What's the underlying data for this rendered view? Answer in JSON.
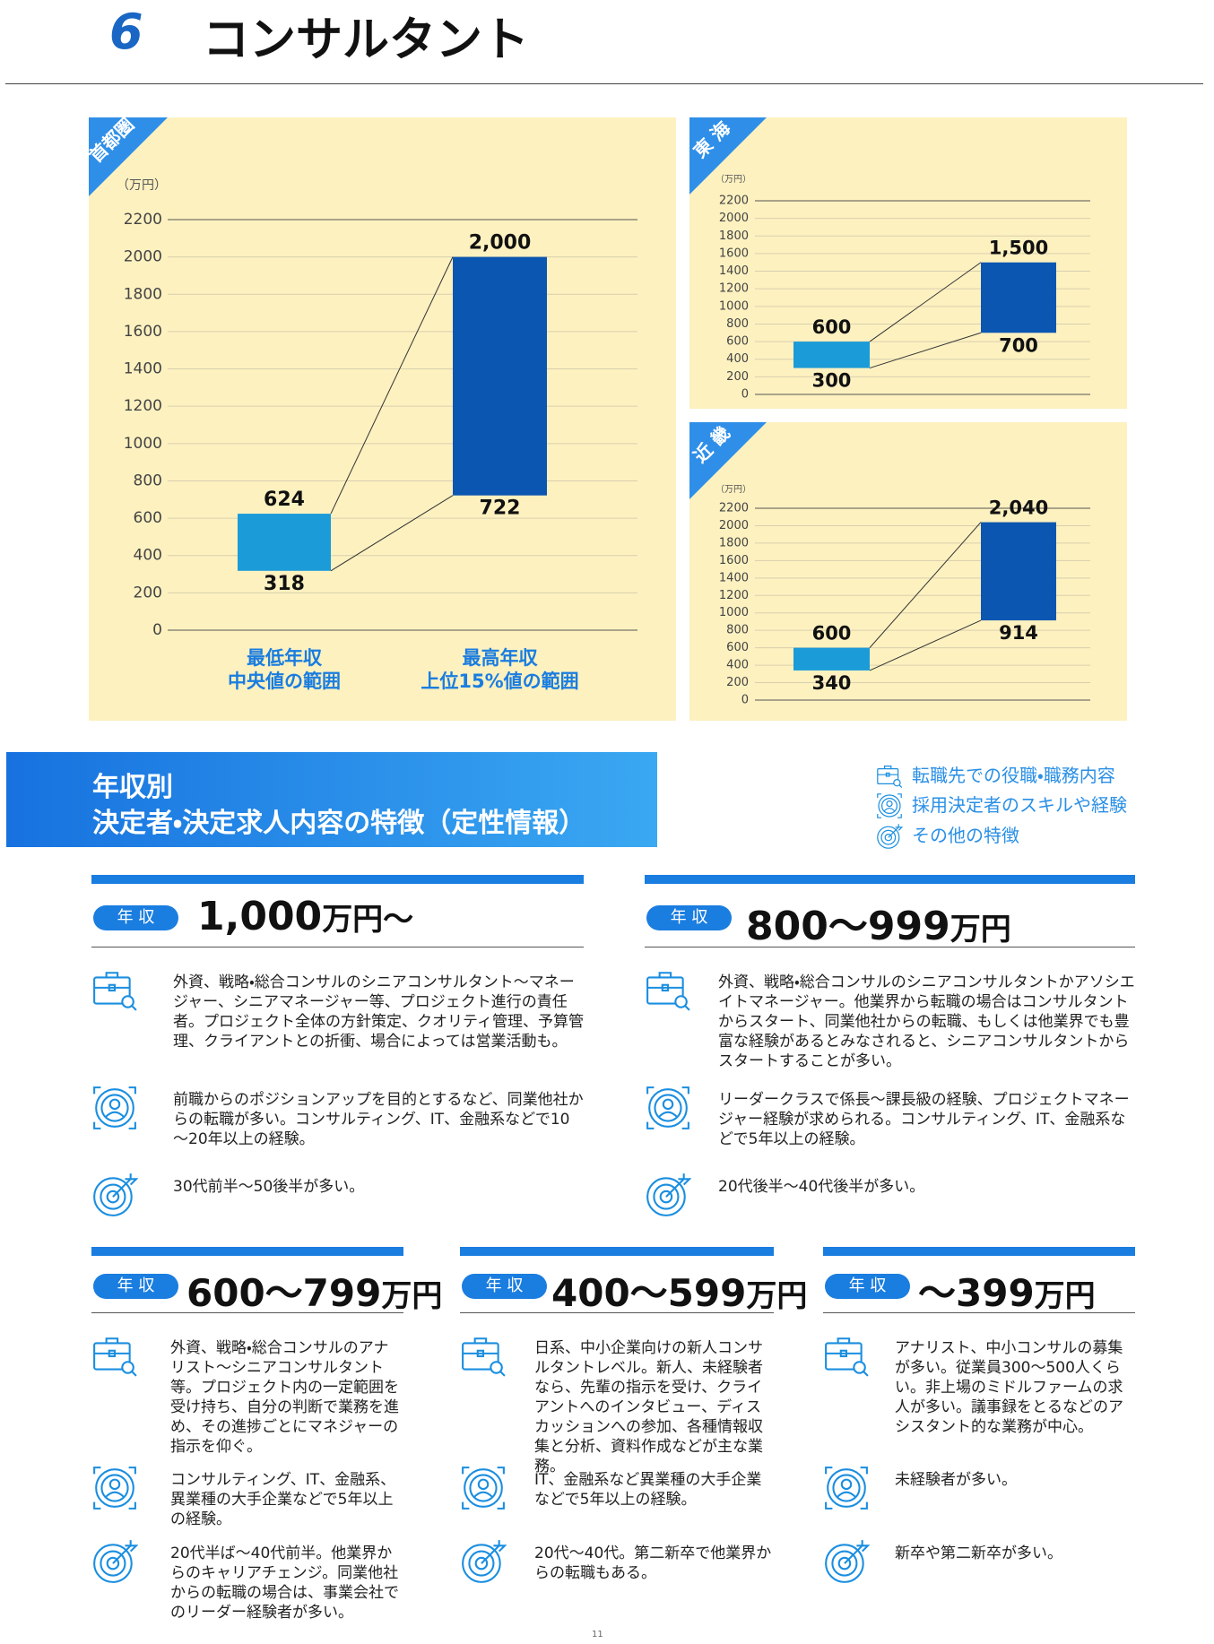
{
  "header": {
    "number": "6",
    "title": "コンサルタント"
  },
  "chart_data": [
    {
      "type": "range_bar",
      "region": "首都圏",
      "y_label": "（万円）",
      "categories": [
        "最低年収\n中央値の範囲",
        "最高年収\n上位15%値の範囲"
      ],
      "colors": [
        "#1b9bd8",
        "#0b56b0"
      ],
      "series": [
        {
          "values": [
            318,
            722
          ]
        },
        {
          "values": [
            624,
            2000
          ],
          "value_labels": [
            "624",
            "2,000"
          ]
        }
      ],
      "ylim": [
        0,
        2200
      ],
      "yticks": [
        0,
        200,
        400,
        600,
        800,
        1000,
        1200,
        1400,
        1600,
        1800,
        2000,
        2200
      ],
      "grid": true
    },
    {
      "type": "range_bar",
      "region": "東 海",
      "y_label": "（万円）",
      "categories": [
        null,
        null
      ],
      "colors": [
        "#1b9bd8",
        "#0b56b0"
      ],
      "series": [
        {
          "values": [
            300,
            700
          ]
        },
        {
          "values": [
            600,
            1500
          ],
          "value_labels": [
            "600",
            "1,500"
          ]
        }
      ],
      "ylim": [
        0,
        2200
      ],
      "yticks": [
        0,
        200,
        400,
        600,
        800,
        1000,
        1200,
        1400,
        1600,
        1800,
        2000,
        2200
      ],
      "grid": true
    },
    {
      "type": "range_bar",
      "region": "近 畿",
      "y_label": "（万円）",
      "categories": [
        null,
        null
      ],
      "colors": [
        "#1b9bd8",
        "#0b56b0"
      ],
      "series": [
        {
          "values": [
            340,
            914
          ]
        },
        {
          "values": [
            600,
            2040
          ],
          "value_labels": [
            "600",
            "2,040"
          ]
        }
      ],
      "ylim": [
        0,
        2200
      ],
      "yticks": [
        0,
        200,
        400,
        600,
        800,
        1000,
        1200,
        1400,
        1600,
        1800,
        2000,
        2200
      ],
      "grid": true
    }
  ],
  "section": {
    "title_lines": [
      "年収別",
      "決定者・決定求人内容の特徴（定性情報）"
    ]
  },
  "legend": [
    "転職先での役職・職務内容",
    "採用決定者のスキルや経験",
    "その他の特徴"
  ],
  "cards": [
    {
      "badge": "年 収",
      "amount": "1,000",
      "unit": "万円～",
      "job": "外資、戦略・総合コンサルのシニアコンサルタント～マネージャー、シニアマネージャー等、プロジェクト進行の責任者。プロジェクト全体の方針策定、クオリティ管理、予算管理、クライアントとの折衝、場合によっては営業活動も。",
      "skill": "前職からのポジションアップを目的とするなど、同業他社からの転職が多い。コンサルティング、IT、金融系などで10～20年以上の経験。",
      "other": "30代前半～50後半が多い。"
    },
    {
      "badge": "年 収",
      "amount": "800～999",
      "unit": "万円",
      "job": "外資、戦略・総合コンサルのシニアコンサルタントかアソシエイトマネージャー。他業界から転職の場合はコンサルタントからスタート、同業他社からの転職、もしくは他業界でも豊富な経験があるとみなされると、シニアコンサルタントからスタートすることが多い。",
      "skill": "リーダークラスで係長～課長級の経験、プロジェクトマネージャー経験が求められる。コンサルティング、IT、金融系などで5年以上の経験。",
      "other": "20代後半～40代後半が多い。"
    },
    {
      "badge": "年 収",
      "amount": "600～799",
      "unit": "万円",
      "job": "外資、戦略・総合コンサルのアナリスト～シニアコンサルタント等。プロジェクト内の一定範囲を受け持ち、自分の判断で業務を進め、その進捗ごとにマネジャーの指示を仰ぐ。",
      "skill": "コンサルティング、IT、金融系、異業種の大手企業などで5年以上の経験。",
      "other": "20代半ば～40代前半。他業界からのキャリアチェンジ。同業他社からの転職の場合は、事業会社でのリーダー経験者が多い。"
    },
    {
      "badge": "年 収",
      "amount": "400～599",
      "unit": "万円",
      "job": "日系、中小企業向けの新人コンサルタントレベル。新人、未経験者なら、先輩の指示を受け、クライアントへのインタビュー、ディスカッションへの参加、各種情報収集と分析、資料作成などが主な業務。",
      "skill": "IT、金融系など異業種の大手企業などで5年以上の経験。",
      "other": "20代～40代。第二新卒で他業界からの転職もある。"
    },
    {
      "badge": "年 収",
      "amount": "～399",
      "unit": "万円",
      "job": "アナリスト、中小コンサルの募集が多い。従業員300～500人くらい。非上場のミドルファームの求人が多い。議事録をとるなどのアシスタント的な業務が中心。",
      "skill": "未経験者が多い。",
      "other": "新卒や第二新卒が多い。"
    }
  ],
  "page_number": "11"
}
